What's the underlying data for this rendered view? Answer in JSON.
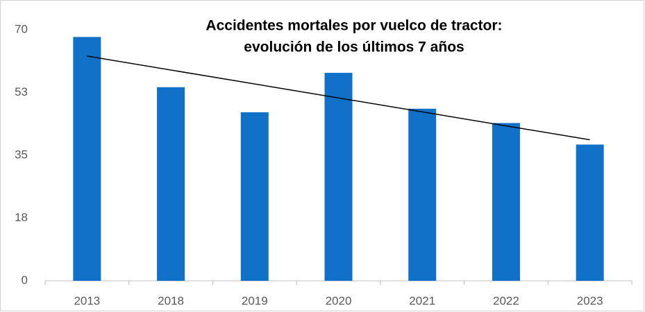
{
  "chart_data": {
    "type": "bar",
    "title": [
      "Accidentes mortales por vuelco de tractor:",
      "evolución de los últimos 7 años"
    ],
    "categories": [
      "2013",
      "2018",
      "2019",
      "2020",
      "2021",
      "2022",
      "2023"
    ],
    "values": [
      68,
      54,
      47,
      58,
      48,
      44,
      38
    ],
    "color": "#1170c8",
    "trendline": true,
    "trendline_color": "#000000",
    "ylim": [
      0,
      70
    ],
    "yticks": [
      0,
      {
        "value": 17.5,
        "label": "18"
      },
      35,
      {
        "value": 52.5,
        "label": "53"
      },
      70
    ],
    "grid": false
  }
}
